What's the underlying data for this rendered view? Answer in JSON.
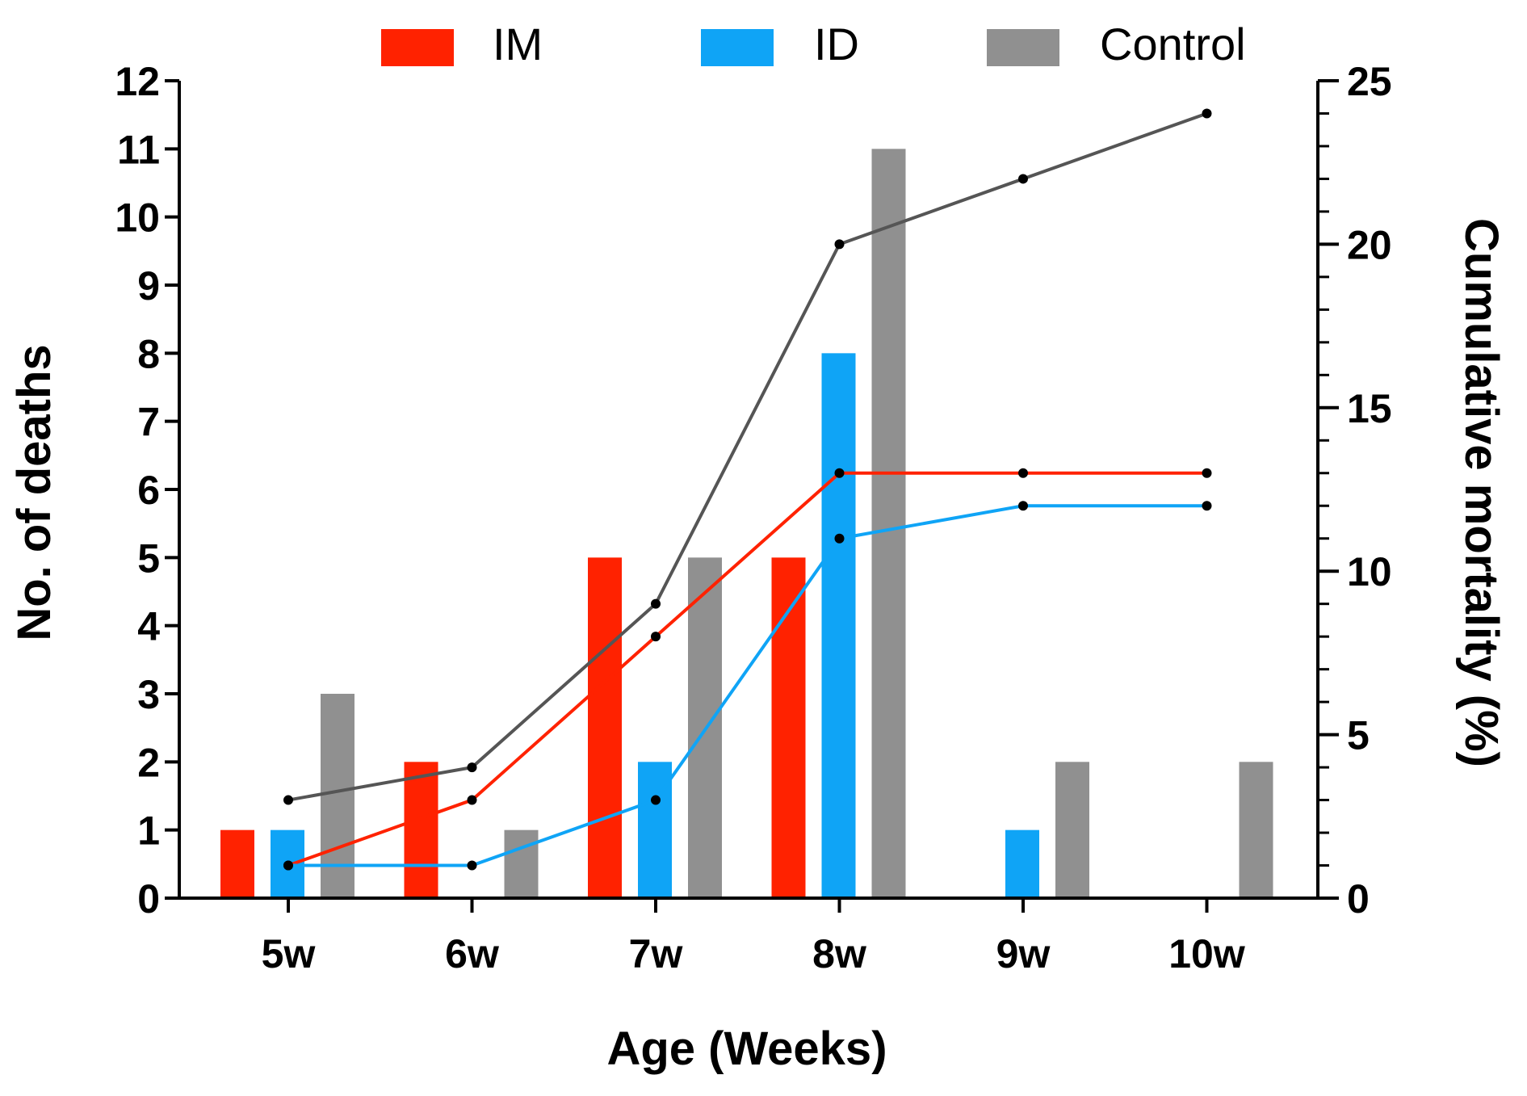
{
  "chart_data": {
    "type": "bar+line",
    "categories": [
      "5w",
      "6w",
      "7w",
      "8w",
      "9w",
      "10w"
    ],
    "xlabel": "Age (Weeks)",
    "ylabel": "No. of deaths",
    "y2label": "Cumulative mortality (%)",
    "ylim": [
      0,
      12
    ],
    "y2lim": [
      0,
      25
    ],
    "yticks": [
      "0",
      "1",
      "2",
      "3",
      "4",
      "5",
      "6",
      "7",
      "8",
      "9",
      "10",
      "11",
      "12"
    ],
    "y2ticks": [
      "0",
      "5",
      "10",
      "15",
      "20",
      "25"
    ],
    "legend_position": "top",
    "bar_series": [
      {
        "name": "IM",
        "color": "#ff2200",
        "values": [
          1,
          2,
          5,
          5,
          0,
          0
        ]
      },
      {
        "name": "ID",
        "color": "#0fa4f6",
        "values": [
          1,
          0,
          2,
          8,
          1,
          0
        ]
      },
      {
        "name": "Control",
        "color": "#909090",
        "values": [
          3,
          1,
          5,
          11,
          2,
          2
        ]
      }
    ],
    "line_series": [
      {
        "name": "IM",
        "color": "#ff2200",
        "values": [
          1,
          3,
          8,
          13,
          13,
          13
        ]
      },
      {
        "name": "ID",
        "color": "#0fa4f6",
        "values": [
          1,
          1,
          3,
          11,
          12,
          12
        ]
      },
      {
        "name": "Control",
        "color": "#555555",
        "values": [
          3,
          4,
          9,
          20,
          22,
          24
        ]
      }
    ]
  }
}
